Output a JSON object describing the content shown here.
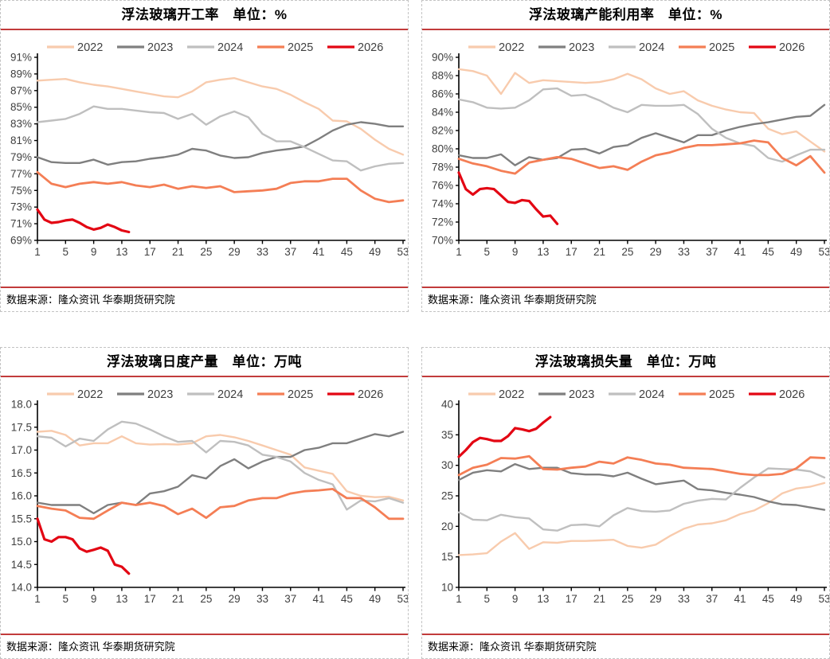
{
  "page": {
    "background": "#ffffff"
  },
  "style_tokens": {
    "rule_color": "#c23b3b",
    "panel_border_color": "#c3c3c3",
    "axis_color": "#000000",
    "tick_label_color": "#3f3f3f",
    "legend_label_color": "#3f3f3f"
  },
  "chart_data": [
    {
      "type": "line",
      "title": "浮法玻璃开工率　单位：%",
      "source": "数据来源：隆众资讯 华泰期货研究院",
      "xlim": [
        1,
        53
      ],
      "x_ticks": [
        1,
        5,
        9,
        13,
        17,
        21,
        25,
        29,
        33,
        37,
        41,
        45,
        49,
        53
      ],
      "ylim": [
        69,
        91
      ],
      "y_step": 2,
      "y_format": "percent",
      "grid": false,
      "legend_position": "top",
      "series": [
        {
          "name": "2022",
          "color": "#F8CBAD",
          "width": 2.4,
          "x_start": 1,
          "x_step": 2,
          "values": [
            88.2,
            88.3,
            88.4,
            88.0,
            87.7,
            87.5,
            87.2,
            86.9,
            86.6,
            86.3,
            86.2,
            86.9,
            88.0,
            88.3,
            88.5,
            88.0,
            87.5,
            87.2,
            86.5,
            85.6,
            84.8,
            83.4,
            83.3,
            82.4,
            81.1,
            80.0,
            79.3
          ]
        },
        {
          "name": "2023",
          "color": "#7F7F7F",
          "width": 2.4,
          "x_start": 1,
          "x_step": 2,
          "values": [
            79.0,
            78.4,
            78.3,
            78.3,
            78.7,
            78.1,
            78.4,
            78.5,
            78.8,
            79.0,
            79.3,
            80.0,
            79.8,
            79.2,
            78.9,
            79.0,
            79.5,
            79.8,
            80.0,
            80.3,
            81.2,
            82.2,
            82.9,
            83.2,
            83.0,
            82.7,
            82.7
          ]
        },
        {
          "name": "2024",
          "color": "#BFBFBF",
          "width": 2.4,
          "x_start": 1,
          "x_step": 2,
          "values": [
            83.2,
            83.4,
            83.6,
            84.2,
            85.1,
            84.8,
            84.8,
            84.6,
            84.4,
            84.3,
            83.6,
            84.2,
            82.9,
            83.9,
            84.5,
            83.8,
            81.8,
            80.9,
            80.9,
            80.2,
            79.4,
            78.6,
            78.5,
            77.4,
            77.9,
            78.2,
            78.3
          ]
        },
        {
          "name": "2025",
          "color": "#F47E55",
          "width": 2.8,
          "x_start": 1,
          "x_step": 2,
          "values": [
            77.2,
            75.8,
            75.4,
            75.8,
            76.0,
            75.8,
            76.0,
            75.6,
            75.4,
            75.7,
            75.2,
            75.5,
            75.3,
            75.5,
            74.8,
            74.9,
            75.0,
            75.2,
            75.9,
            76.1,
            76.1,
            76.4,
            76.4,
            75.0,
            74.0,
            73.6,
            73.8
          ]
        },
        {
          "name": "2026",
          "color": "#E30613",
          "width": 3.2,
          "x_start": 1,
          "x_step": 1,
          "values": [
            72.7,
            71.5,
            71.1,
            71.2,
            71.4,
            71.5,
            71.1,
            70.6,
            70.3,
            70.5,
            70.9,
            70.6,
            70.2,
            70.0
          ]
        }
      ]
    },
    {
      "type": "line",
      "title": "浮法玻璃产能利用率　单位：%",
      "source": "数据来源：隆众资讯 华泰期货研究院",
      "xlim": [
        1,
        53
      ],
      "x_ticks": [
        1,
        5,
        9,
        13,
        17,
        21,
        25,
        29,
        33,
        37,
        41,
        45,
        49,
        53
      ],
      "ylim": [
        70,
        90
      ],
      "y_step": 2,
      "y_format": "percent",
      "grid": false,
      "legend_position": "top",
      "series": [
        {
          "name": "2022",
          "color": "#F8CBAD",
          "width": 2.4,
          "x_start": 1,
          "x_step": 2,
          "values": [
            88.7,
            88.5,
            88.0,
            86.0,
            88.3,
            87.2,
            87.5,
            87.4,
            87.3,
            87.2,
            87.3,
            87.6,
            88.2,
            87.6,
            86.6,
            86.0,
            86.3,
            85.3,
            84.7,
            84.3,
            84.0,
            83.9,
            82.2,
            81.6,
            81.9,
            80.8,
            79.7
          ]
        },
        {
          "name": "2023",
          "color": "#7F7F7F",
          "width": 2.4,
          "x_start": 1,
          "x_step": 2,
          "values": [
            79.3,
            79.0,
            79.0,
            79.4,
            78.2,
            79.1,
            78.8,
            79.0,
            79.9,
            80.0,
            79.5,
            80.2,
            80.4,
            81.2,
            81.7,
            81.2,
            80.7,
            81.5,
            81.5,
            82.0,
            82.4,
            82.7,
            82.9,
            83.2,
            83.5,
            83.6,
            84.8
          ]
        },
        {
          "name": "2024",
          "color": "#BFBFBF",
          "width": 2.4,
          "x_start": 1,
          "x_step": 2,
          "values": [
            85.4,
            85.1,
            84.5,
            84.4,
            84.5,
            85.3,
            86.5,
            86.6,
            85.8,
            85.9,
            85.3,
            84.5,
            84.0,
            84.8,
            84.7,
            84.7,
            84.8,
            83.8,
            82.2,
            81.2,
            80.6,
            80.3,
            79.0,
            78.6,
            79.3,
            79.9,
            79.9
          ]
        },
        {
          "name": "2025",
          "color": "#F47E55",
          "width": 2.8,
          "x_start": 1,
          "x_step": 2,
          "values": [
            78.9,
            78.4,
            78.1,
            77.6,
            77.3,
            78.5,
            78.8,
            79.1,
            78.9,
            78.4,
            77.9,
            78.1,
            77.7,
            78.6,
            79.3,
            79.6,
            80.1,
            80.4,
            80.4,
            80.5,
            80.6,
            80.9,
            80.7,
            79.0,
            78.2,
            79.2,
            77.4
          ]
        },
        {
          "name": "2026",
          "color": "#E30613",
          "width": 3.2,
          "x_start": 1,
          "x_step": 1,
          "values": [
            77.4,
            75.6,
            75.0,
            75.6,
            75.7,
            75.6,
            74.9,
            74.2,
            74.1,
            74.4,
            74.3,
            73.4,
            72.6,
            72.7,
            71.8
          ]
        }
      ]
    },
    {
      "type": "line",
      "title": "浮法玻璃日度产量　单位：万吨",
      "source": "数据来源：隆众资讯 华泰期货研究院",
      "xlim": [
        1,
        53
      ],
      "x_ticks": [
        1,
        5,
        9,
        13,
        17,
        21,
        25,
        29,
        33,
        37,
        41,
        45,
        49,
        53
      ],
      "ylim": [
        14.0,
        18.0
      ],
      "y_step": 0.5,
      "y_format": "fixed1",
      "grid": false,
      "legend_position": "top",
      "series": [
        {
          "name": "2022",
          "color": "#F8CBAD",
          "width": 2.4,
          "x_start": 1,
          "x_step": 2,
          "values": [
            17.4,
            17.42,
            17.33,
            17.1,
            17.15,
            17.15,
            17.3,
            17.15,
            17.12,
            17.13,
            17.12,
            17.15,
            17.3,
            17.33,
            17.28,
            17.2,
            17.1,
            17.0,
            16.9,
            16.62,
            16.55,
            16.48,
            16.1,
            16.0,
            15.97,
            15.98,
            15.9
          ]
        },
        {
          "name": "2023",
          "color": "#7F7F7F",
          "width": 2.4,
          "x_start": 1,
          "x_step": 2,
          "values": [
            15.85,
            15.8,
            15.8,
            15.8,
            15.62,
            15.8,
            15.85,
            15.8,
            16.05,
            16.1,
            16.2,
            16.45,
            16.38,
            16.65,
            16.8,
            16.6,
            16.75,
            16.85,
            16.85,
            17.0,
            17.05,
            17.15,
            17.15,
            17.25,
            17.35,
            17.3,
            17.4
          ]
        },
        {
          "name": "2024",
          "color": "#BFBFBF",
          "width": 2.4,
          "x_start": 1,
          "x_step": 2,
          "values": [
            17.3,
            17.27,
            17.08,
            17.25,
            17.2,
            17.45,
            17.62,
            17.58,
            17.45,
            17.3,
            17.18,
            17.2,
            16.95,
            17.2,
            17.18,
            17.1,
            16.9,
            16.85,
            16.75,
            16.5,
            16.35,
            16.25,
            15.7,
            15.9,
            15.88,
            15.95,
            15.85
          ]
        },
        {
          "name": "2025",
          "color": "#F47E55",
          "width": 2.8,
          "x_start": 1,
          "x_step": 2,
          "values": [
            15.78,
            15.72,
            15.68,
            15.52,
            15.5,
            15.68,
            15.85,
            15.8,
            15.85,
            15.78,
            15.6,
            15.72,
            15.52,
            15.75,
            15.78,
            15.9,
            15.95,
            15.95,
            16.05,
            16.1,
            16.12,
            16.15,
            15.95,
            15.95,
            15.75,
            15.5,
            15.5
          ]
        },
        {
          "name": "2026",
          "color": "#E30613",
          "width": 3.2,
          "x_start": 1,
          "x_step": 1,
          "values": [
            15.5,
            15.05,
            15.0,
            15.1,
            15.1,
            15.05,
            14.85,
            14.78,
            14.82,
            14.87,
            14.8,
            14.5,
            14.45,
            14.3
          ]
        }
      ]
    },
    {
      "type": "line",
      "title": "浮法玻璃损失量　单位：万吨",
      "source": "数据来源：隆众资讯 华泰期货研究院",
      "xlim": [
        1,
        53
      ],
      "x_ticks": [
        1,
        5,
        9,
        13,
        17,
        21,
        25,
        29,
        33,
        37,
        41,
        45,
        49,
        53
      ],
      "ylim": [
        10,
        40
      ],
      "y_step": 5,
      "y_format": "int",
      "grid": false,
      "legend_position": "top",
      "series": [
        {
          "name": "2022",
          "color": "#F8CBAD",
          "width": 2.4,
          "x_start": 1,
          "x_step": 2,
          "values": [
            15.3,
            15.4,
            15.6,
            17.5,
            18.9,
            16.3,
            17.4,
            17.3,
            17.6,
            17.6,
            17.7,
            17.8,
            16.8,
            16.5,
            17.0,
            18.4,
            19.6,
            20.3,
            20.5,
            21.0,
            22.0,
            22.6,
            23.8,
            25.4,
            26.2,
            26.5,
            27.1
          ]
        },
        {
          "name": "2023",
          "color": "#7F7F7F",
          "width": 2.4,
          "x_start": 1,
          "x_step": 2,
          "values": [
            27.6,
            28.8,
            29.2,
            29.0,
            30.2,
            29.4,
            29.6,
            29.6,
            28.7,
            28.5,
            28.5,
            28.2,
            28.8,
            27.8,
            26.9,
            27.2,
            27.5,
            26.1,
            25.9,
            25.5,
            25.2,
            24.8,
            24.1,
            23.6,
            23.5,
            23.1,
            22.7
          ]
        },
        {
          "name": "2024",
          "color": "#BFBFBF",
          "width": 2.4,
          "x_start": 1,
          "x_step": 2,
          "values": [
            22.3,
            21.1,
            21.0,
            21.9,
            21.5,
            21.3,
            19.5,
            19.3,
            20.2,
            20.3,
            20.0,
            21.8,
            23.0,
            22.5,
            22.4,
            22.6,
            23.7,
            24.2,
            24.5,
            24.4,
            26.3,
            28.0,
            29.5,
            29.4,
            29.3,
            29.0,
            28.0
          ]
        },
        {
          "name": "2025",
          "color": "#F47E55",
          "width": 2.8,
          "x_start": 1,
          "x_step": 2,
          "values": [
            28.4,
            29.6,
            30.1,
            31.2,
            31.1,
            31.5,
            29.4,
            29.3,
            29.6,
            29.8,
            30.6,
            30.3,
            31.3,
            30.9,
            30.3,
            30.1,
            29.6,
            29.5,
            29.4,
            29.0,
            28.6,
            28.4,
            28.4,
            28.6,
            29.5,
            31.3,
            31.2
          ]
        },
        {
          "name": "2026",
          "color": "#E30613",
          "width": 3.2,
          "x_start": 1,
          "x_step": 1,
          "values": [
            31.4,
            32.5,
            33.8,
            34.5,
            34.3,
            34.0,
            34.0,
            34.8,
            36.1,
            35.9,
            35.6,
            36.0,
            37.0,
            37.9
          ]
        }
      ]
    }
  ]
}
